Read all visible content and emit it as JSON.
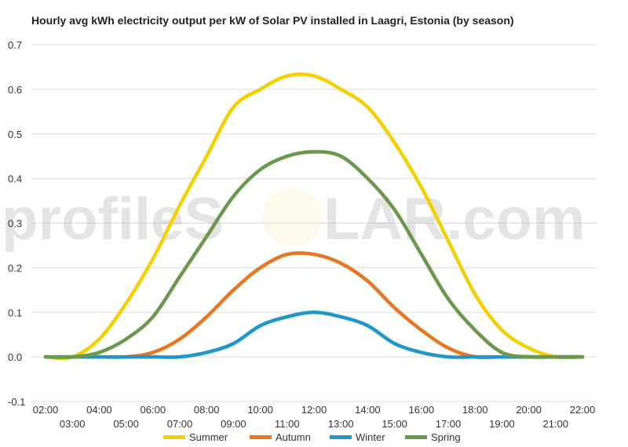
{
  "chart_data": {
    "type": "line",
    "title": "Hourly avg kWh electricity output per kW of Solar PV installed in Laagri, Estonia (by season)",
    "xlabel": "",
    "ylabel": "",
    "ylim": [
      -0.1,
      0.7
    ],
    "yticks": [
      "-0.1",
      "0.0",
      "0.1",
      "0.2",
      "0.3",
      "0.4",
      "0.5",
      "0.6",
      "0.7"
    ],
    "x": [
      "02:00",
      "03:00",
      "04:00",
      "05:00",
      "06:00",
      "07:00",
      "08:00",
      "09:00",
      "10:00",
      "11:00",
      "12:00",
      "13:00",
      "14:00",
      "15:00",
      "16:00",
      "17:00",
      "18:00",
      "19:00",
      "20:00",
      "21:00",
      "22:00"
    ],
    "grid": true,
    "legend_position": "bottom",
    "series": [
      {
        "name": "Summer",
        "color": "#f5d000",
        "values": [
          0.0,
          0.0,
          0.04,
          0.12,
          0.22,
          0.34,
          0.45,
          0.56,
          0.6,
          0.63,
          0.63,
          0.6,
          0.56,
          0.48,
          0.38,
          0.26,
          0.14,
          0.06,
          0.02,
          0.0,
          0.0
        ]
      },
      {
        "name": "Autumn",
        "color": "#e87722",
        "values": [
          0.0,
          0.0,
          0.0,
          0.0,
          0.01,
          0.04,
          0.09,
          0.15,
          0.2,
          0.23,
          0.23,
          0.21,
          0.17,
          0.11,
          0.06,
          0.02,
          0.0,
          0.0,
          0.0,
          0.0,
          0.0
        ]
      },
      {
        "name": "Winter",
        "color": "#2196c9",
        "values": [
          0.0,
          0.0,
          0.0,
          0.0,
          0.0,
          0.0,
          0.01,
          0.03,
          0.07,
          0.09,
          0.1,
          0.09,
          0.07,
          0.03,
          0.01,
          0.0,
          0.0,
          0.0,
          0.0,
          0.0,
          0.0
        ]
      },
      {
        "name": "Spring",
        "color": "#6a994e",
        "values": [
          0.0,
          0.0,
          0.01,
          0.04,
          0.09,
          0.18,
          0.27,
          0.36,
          0.42,
          0.45,
          0.46,
          0.45,
          0.4,
          0.33,
          0.23,
          0.13,
          0.06,
          0.01,
          0.0,
          0.0,
          0.0
        ]
      }
    ]
  },
  "watermark": {
    "left": "profileS",
    "circle": "O",
    "right": "LAR.com",
    "circle_color": "#f7e9a8"
  }
}
